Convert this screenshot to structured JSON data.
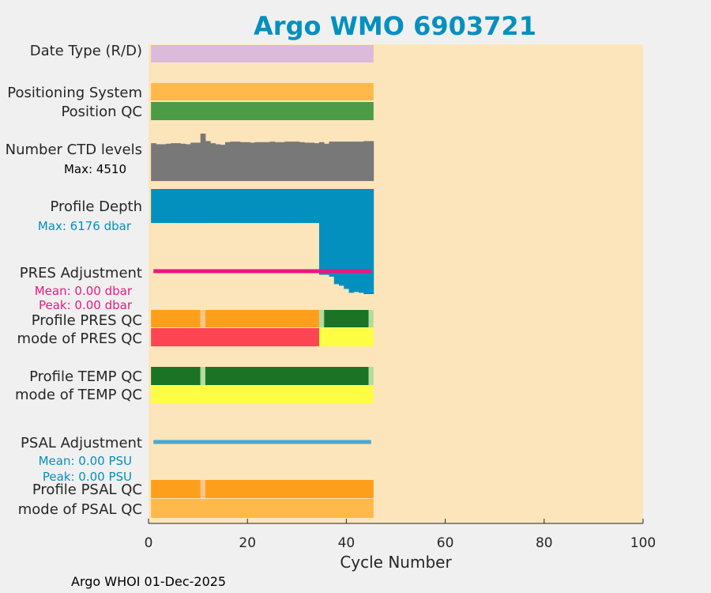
{
  "chart_data": {
    "type": "bar",
    "title": "Argo WMO 6903721",
    "xlabel": "Cycle Number",
    "xlim": [
      0,
      100
    ],
    "xticks": [
      "0",
      "20",
      "40",
      "60",
      "80",
      "100"
    ],
    "n_cycles": 45,
    "footer": "Argo WHOI 01-Dec-2025",
    "colors": {
      "title": "#0390bf",
      "background": "#fde5bb",
      "data_type": "#dbbadb",
      "positioning": "#ffb84a",
      "position_qc": "#4b9b47",
      "ctd": "#787878",
      "depth": "#0390bf",
      "pres_adj": "#e8197f",
      "psal_adj": "#47a9d1",
      "qc_orange": "#fe9f1c",
      "qc_light_orange": "#fec48a",
      "qc_green": "#1b7426",
      "qc_light_green": "#b3dc9c",
      "qc_red": "#fe4553",
      "qc_yellow": "#fdfd43",
      "qc_mode_orange": "#ffb84a",
      "sub_black": "#000000"
    },
    "rows": [
      {
        "label": "Date Type (R/D)"
      },
      {
        "label": "Positioning System"
      },
      {
        "label": "Position QC"
      },
      {
        "label": "Number CTD levels",
        "sub": "Max: 4510"
      },
      {
        "label": "Profile Depth",
        "sub": "Max: 6176 dbar"
      },
      {
        "label": "PRES Adjustment",
        "sub1": "Mean: 0.00 dbar",
        "sub2": "Peak: 0.00 dbar"
      },
      {
        "label": "Profile PRES QC"
      },
      {
        "label": "mode of PRES QC"
      },
      {
        "label": "Profile TEMP QC"
      },
      {
        "label": "mode of TEMP QC"
      },
      {
        "label": "PSAL Adjustment",
        "sub1": "Mean: 0.00 PSU",
        "sub2": "Peak: 0.00 PSU"
      },
      {
        "label": "Profile PSAL QC"
      },
      {
        "label": "mode of PSAL QC"
      }
    ],
    "ctd_levels": [
      3600,
      3500,
      3500,
      3550,
      3600,
      3600,
      3550,
      3500,
      3650,
      3650,
      4510,
      3800,
      3600,
      3500,
      3450,
      3700,
      3750,
      3750,
      3700,
      3700,
      3650,
      3700,
      3700,
      3700,
      3750,
      3700,
      3700,
      3750,
      3750,
      3750,
      3700,
      3650,
      3650,
      3600,
      3700,
      3550,
      3750,
      3750,
      3750,
      3750,
      3750,
      3750,
      3750,
      3800,
      3800
    ],
    "profile_depth": [
      2000,
      2000,
      2000,
      2000,
      2000,
      2000,
      2000,
      2000,
      2000,
      2000,
      2000,
      2000,
      2000,
      2000,
      2000,
      2000,
      2000,
      2000,
      2000,
      2000,
      2000,
      2000,
      2000,
      2000,
      2000,
      2000,
      2000,
      2000,
      2000,
      2000,
      2000,
      2000,
      2000,
      2000,
      5040,
      5040,
      5150,
      5590,
      5680,
      5870,
      6100,
      6050,
      6100,
      6176,
      6176
    ],
    "depth_max": 6176,
    "segments": {
      "profile_pres_qc": [
        {
          "start": 1,
          "end": 10,
          "color": "qc_orange"
        },
        {
          "start": 11,
          "end": 11,
          "color": "qc_light_orange"
        },
        {
          "start": 12,
          "end": 34,
          "color": "qc_orange"
        },
        {
          "start": 35,
          "end": 35,
          "color": "qc_light_green"
        },
        {
          "start": 36,
          "end": 44,
          "color": "qc_green"
        },
        {
          "start": 45,
          "end": 45,
          "color": "qc_light_green"
        }
      ],
      "mode_pres_qc": [
        {
          "start": 1,
          "end": 34,
          "color": "qc_red"
        },
        {
          "start": 35,
          "end": 45,
          "color": "qc_yellow"
        }
      ],
      "profile_temp_qc": [
        {
          "start": 1,
          "end": 10,
          "color": "qc_green"
        },
        {
          "start": 11,
          "end": 11,
          "color": "qc_light_green"
        },
        {
          "start": 12,
          "end": 44,
          "color": "qc_green"
        },
        {
          "start": 45,
          "end": 45,
          "color": "qc_light_green"
        }
      ],
      "mode_temp_qc": [
        {
          "start": 1,
          "end": 45,
          "color": "qc_yellow"
        }
      ],
      "profile_psal_qc": [
        {
          "start": 1,
          "end": 10,
          "color": "qc_orange"
        },
        {
          "start": 11,
          "end": 11,
          "color": "qc_light_orange"
        },
        {
          "start": 12,
          "end": 45,
          "color": "qc_orange"
        }
      ],
      "mode_psal_qc": [
        {
          "start": 1,
          "end": 45,
          "color": "qc_mode_orange"
        }
      ]
    }
  }
}
